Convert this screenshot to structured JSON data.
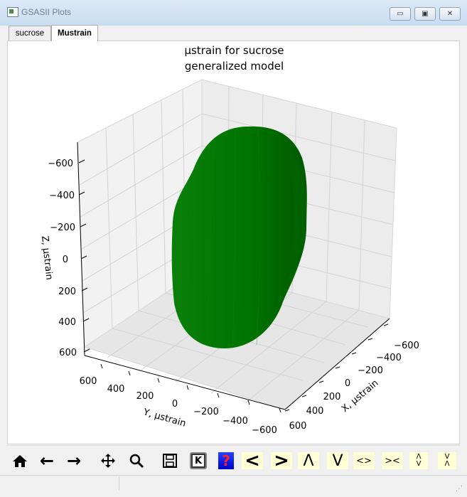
{
  "window": {
    "title": "GSASII Plots",
    "minimize": "▭",
    "maximize": "▣",
    "close": "✕"
  },
  "tabs": [
    {
      "label": "sucrose"
    },
    {
      "label": "Mustrain"
    }
  ],
  "plot": {
    "title_line1": "μstrain for sucrose",
    "title_line2": "generalized model",
    "axes": {
      "x_label": "X, μstrain",
      "y_label": "Y, μstrain",
      "z_label": "Z, μstrain",
      "x_ticks": [
        "−600",
        "−400",
        "−200",
        "0",
        "200",
        "400",
        "600"
      ],
      "y_ticks": [
        "600",
        "400",
        "200",
        "0",
        "−200",
        "−400",
        "−600"
      ],
      "z_ticks": [
        "−600",
        "−400",
        "−200",
        "0",
        "200",
        "400",
        "600"
      ]
    },
    "surface_color": "#007400"
  },
  "toolbar": {
    "home": "home-icon",
    "back": "←",
    "forward": "→",
    "pan": "move-icon",
    "zoom": "magnifier-icon",
    "save": "save-icon",
    "keypress": "K",
    "help": "?",
    "lt": "<",
    "gt": ">",
    "up": "Λ",
    "down": "V",
    "expand_h": "<>",
    "shrink_h": "><",
    "expand_v": "Λ V",
    "shrink_v": "V Λ"
  },
  "statusbar": {
    "left_text": "",
    "right_text": ""
  }
}
